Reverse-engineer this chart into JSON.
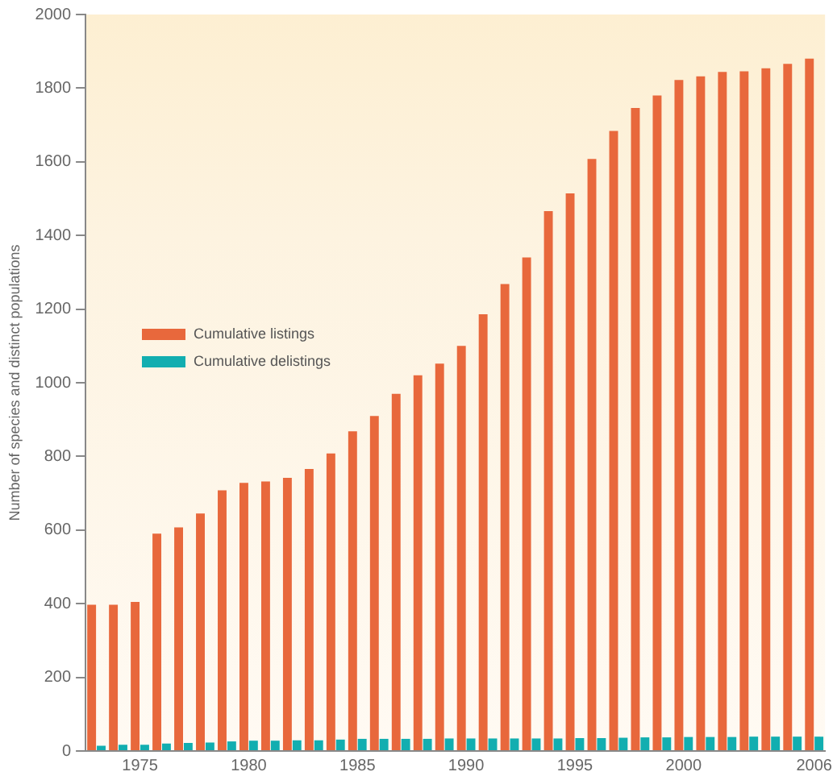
{
  "chart_data": {
    "type": "bar",
    "ylabel": "Number of species and distinct populations",
    "categories": [
      null,
      null,
      "1975",
      null,
      null,
      null,
      null,
      "1980",
      null,
      null,
      null,
      null,
      "1985",
      null,
      null,
      null,
      null,
      "1990",
      null,
      null,
      null,
      null,
      "1995",
      null,
      null,
      null,
      null,
      "2000",
      null,
      null,
      null,
      null,
      null,
      "2006"
    ],
    "series": [
      {
        "name": "Cumulative listings",
        "color": "#e8683c",
        "values": [
          397,
          397,
          405,
          590,
          607,
          645,
          708,
          728,
          732,
          742,
          766,
          808,
          868,
          910,
          970,
          1020,
          1052,
          1100,
          1186,
          1268,
          1340,
          1466,
          1514,
          1608,
          1684,
          1746,
          1780,
          1822,
          1832,
          1844,
          1846,
          1854,
          1866,
          1880
        ]
      },
      {
        "name": "Cumulative delistings",
        "color": "#12aeb0",
        "values": [
          14,
          17,
          17,
          20,
          22,
          23,
          26,
          28,
          28,
          29,
          29,
          31,
          33,
          33,
          33,
          33,
          34,
          34,
          34,
          34,
          34,
          34,
          35,
          35,
          36,
          37,
          37,
          38,
          38,
          38,
          39,
          39,
          39,
          39
        ]
      }
    ],
    "ylim": [
      0,
      2000
    ],
    "yticks": [
      0,
      200,
      400,
      600,
      800,
      1000,
      1200,
      1400,
      1600,
      1800,
      2000
    ],
    "grid": false,
    "legend": "left"
  }
}
